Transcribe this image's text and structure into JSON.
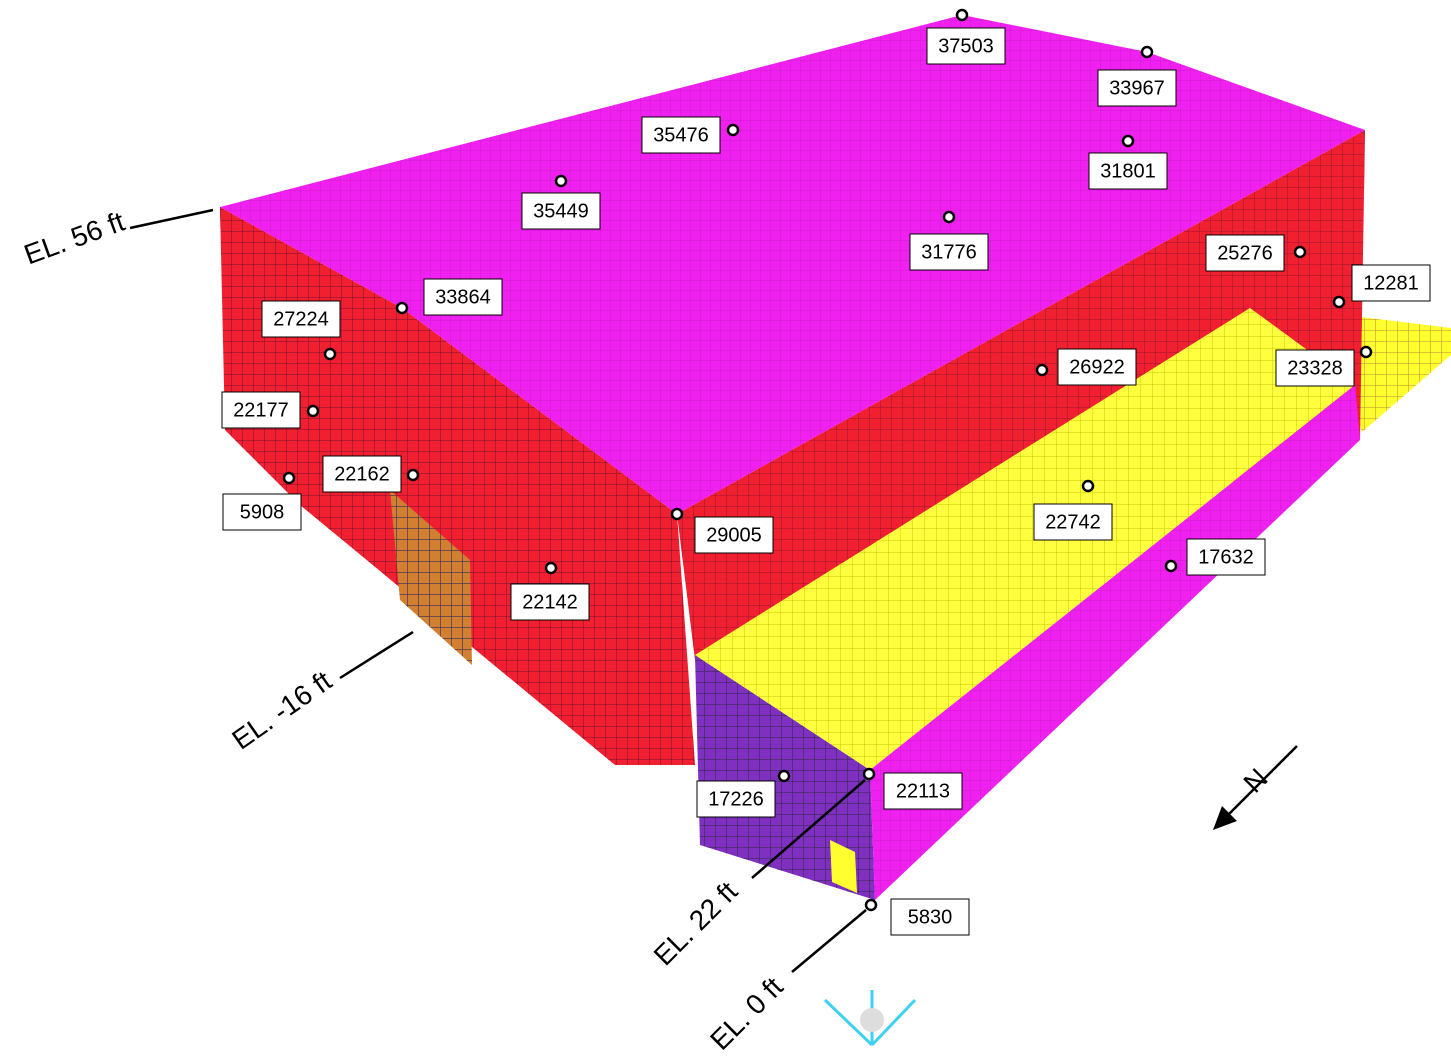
{
  "point_labels": [
    "37503",
    "33967",
    "35476",
    "31801",
    "35449",
    "31776",
    "25276",
    "12281",
    "33864",
    "27224",
    "26922",
    "23328",
    "22177",
    "22162",
    "5908",
    "22742",
    "29005",
    "17632",
    "22142",
    "17226",
    "22113",
    "5830"
  ],
  "elevations": [
    "EL. 56 ft",
    "EL. -16 ft",
    "EL. 22 ft",
    "EL. 0 ft"
  ],
  "north": "N"
}
